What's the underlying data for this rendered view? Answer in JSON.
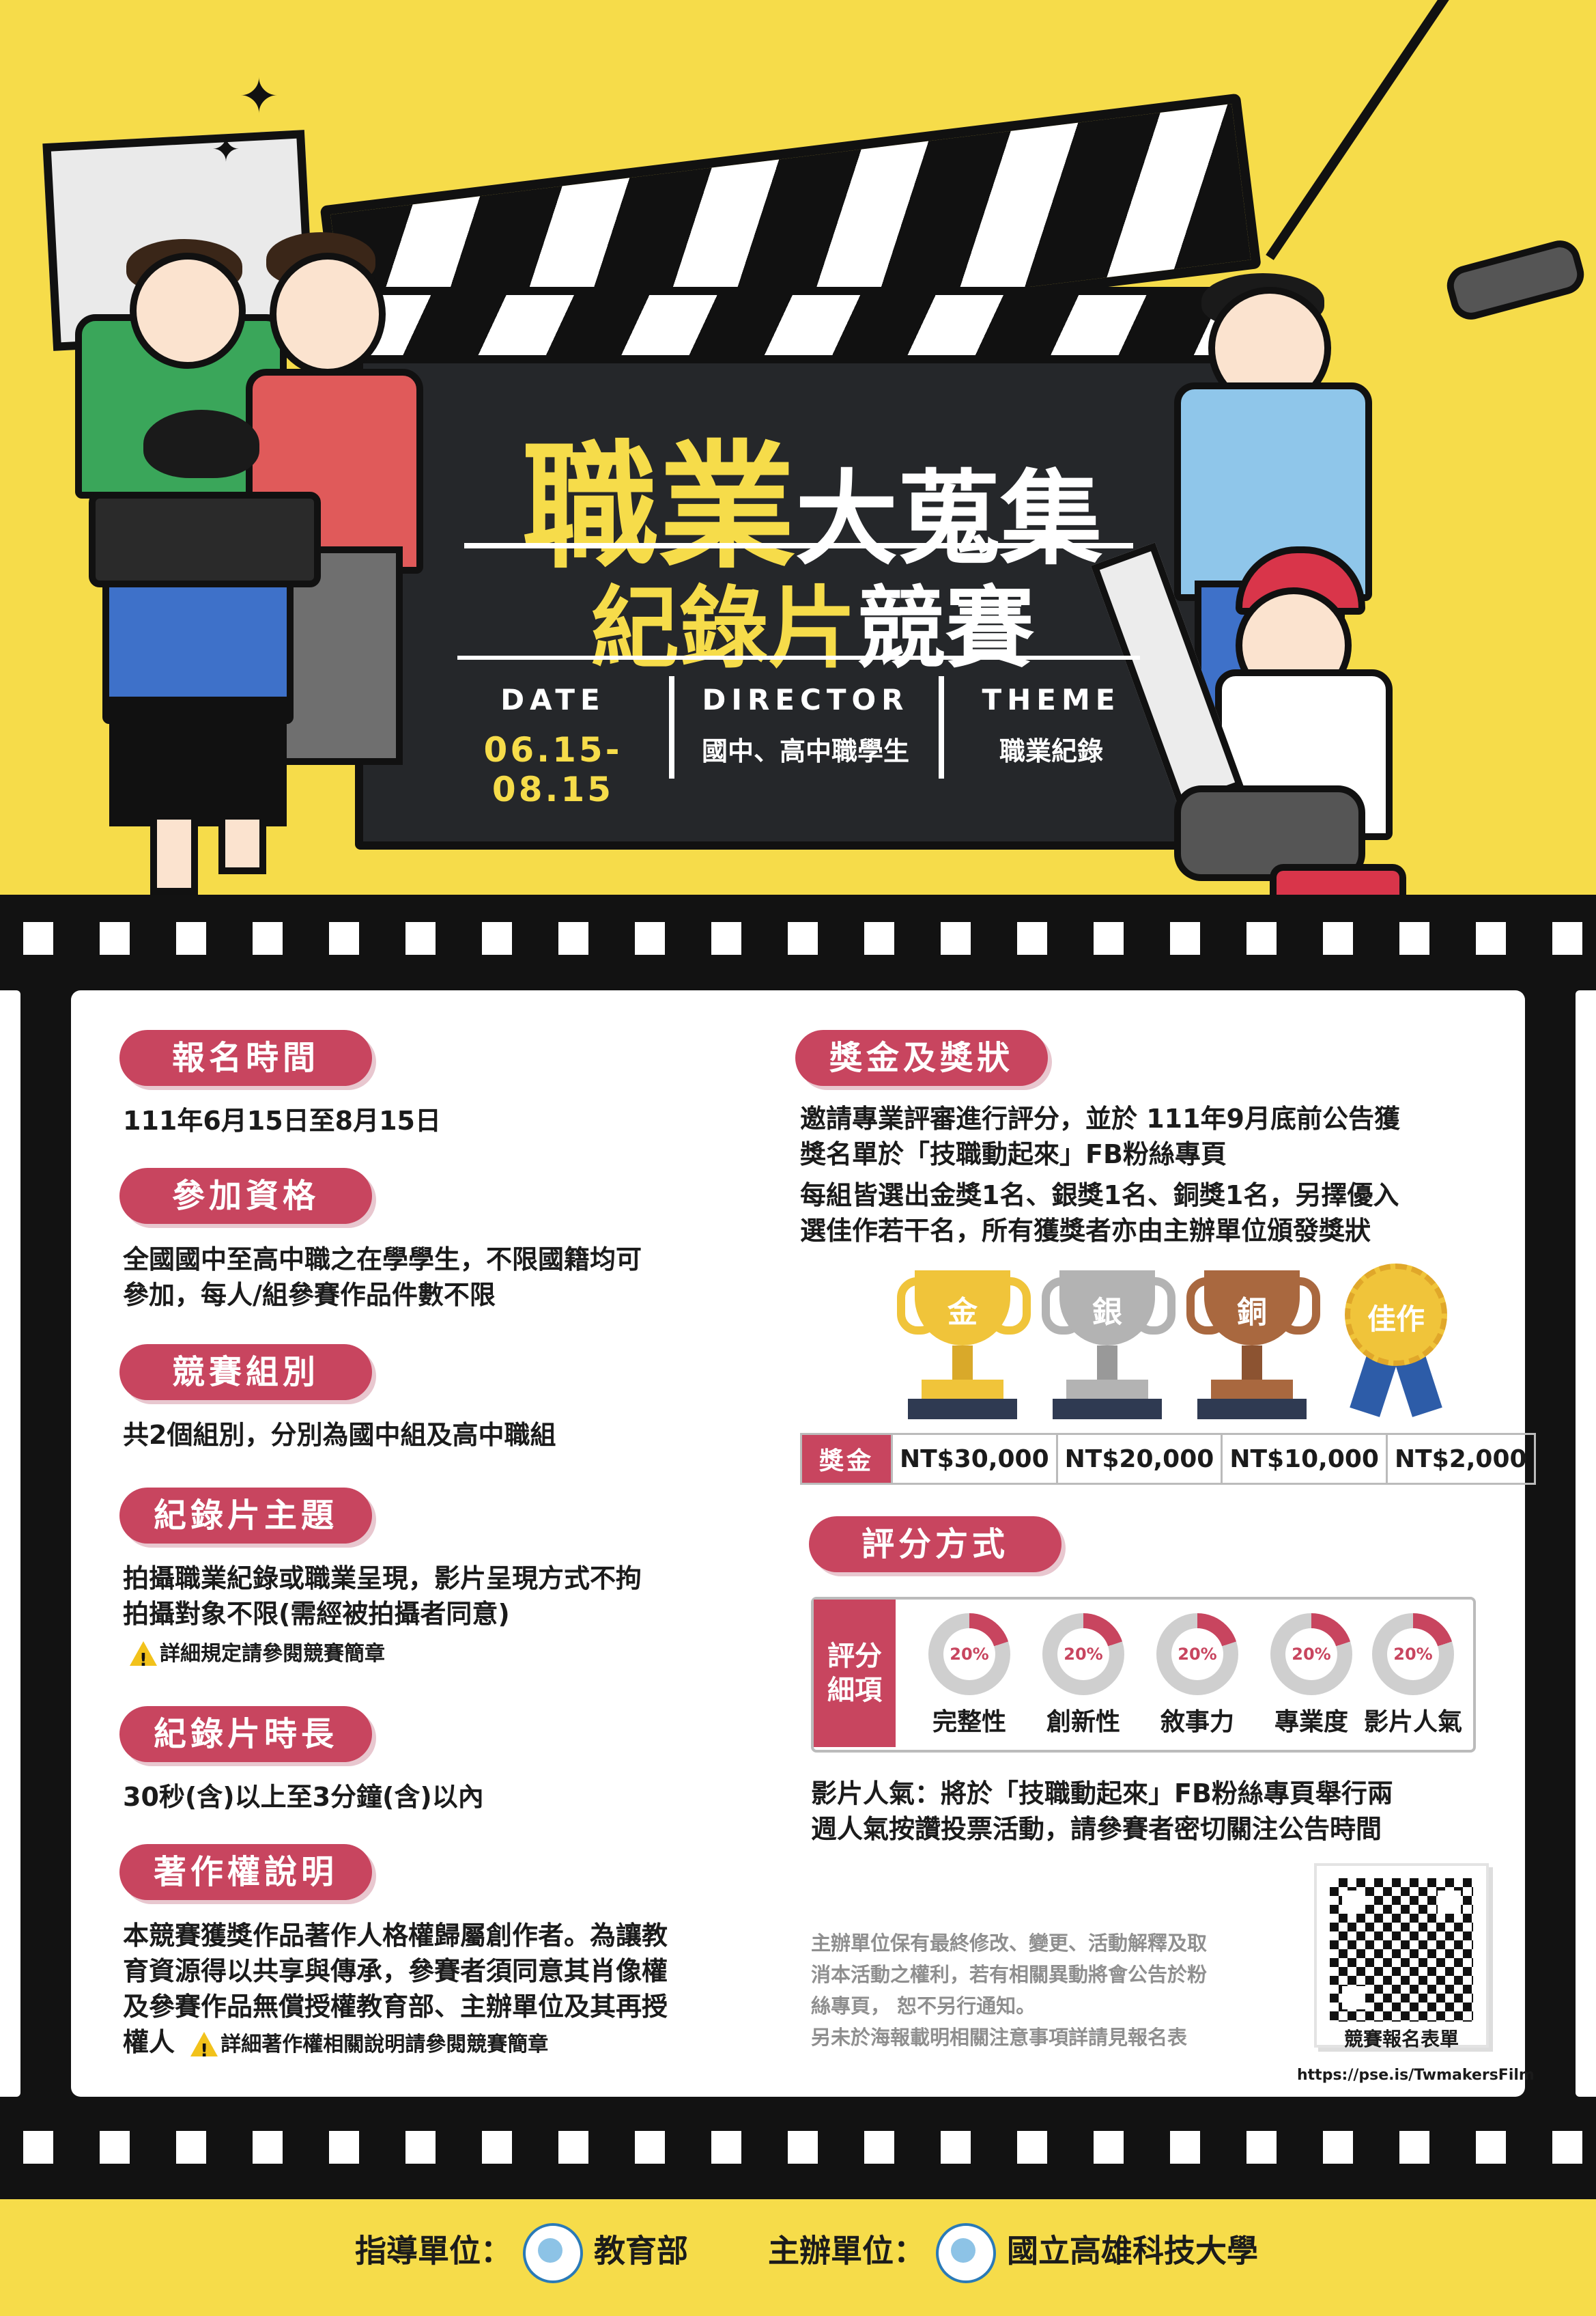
{
  "hero": {
    "title_part1": "職業",
    "title_part2": "大蒐集",
    "subtitle_part1": "紀錄片",
    "subtitle_part2": "競賽",
    "date_label": "DATE",
    "date_value": "06.15-08.15",
    "director_label": "DIRECTOR",
    "director_value": "國中、高中職學生",
    "theme_label": "THEME",
    "theme_value": "職業紀錄"
  },
  "left": {
    "registration": {
      "heading": "報名時間",
      "text": "111年6月15日至8月15日"
    },
    "eligibility": {
      "heading": "參加資格",
      "line1": "全國國中至高中職之在學學生，不限國籍均可",
      "line2": "參加，每人/組參賽作品件數不限"
    },
    "groups": {
      "heading": "競賽組別",
      "text": "共2個組別，分別為國中組及高中職組"
    },
    "theme": {
      "heading": "紀錄片主題",
      "line1": "拍攝職業紀錄或職業呈現，影片呈現方式不拘",
      "line2": "拍攝對象不限(需經被拍攝者同意)",
      "note": "詳細規定請參閱競賽簡章"
    },
    "duration": {
      "heading": "紀錄片時長",
      "text": "30秒(含)以上至3分鐘(含)以內"
    },
    "copyright": {
      "heading": "著作權說明",
      "line1": "本競賽獲獎作品著作人格權歸屬創作者。為讓教",
      "line2": "育資源得以共享與傳承，參賽者須同意其肖像權",
      "line3": "及參賽作品無償授權教育部、主辦單位及其再授",
      "line4": "權人",
      "note": "詳細著作權相關說明請參閱競賽簡章"
    }
  },
  "right": {
    "awards": {
      "heading": "獎金及獎狀",
      "line1": "邀請專業評審進行評分，並於 111年9月底前公告獲",
      "line2": "獎名單於「技職動起來」FB粉絲專頁",
      "line3": "每組皆選出金獎1名、銀獎1名、銅獎1名，另擇優入",
      "line4": "選佳作若干名，所有獲獎者亦由主辦單位頒發獎狀",
      "trophies": [
        "金",
        "銀",
        "銅",
        "佳作"
      ],
      "table_header": "獎金",
      "amounts": [
        "NT$30,000",
        "NT$20,000",
        "NT$10,000",
        "NT$2,000"
      ]
    },
    "scoring": {
      "heading": "評分方式",
      "label_line1": "評分",
      "label_line2": "細項",
      "items": [
        {
          "pct": "20%",
          "name": "完整性"
        },
        {
          "pct": "20%",
          "name": "創新性"
        },
        {
          "pct": "20%",
          "name": "敘事力"
        },
        {
          "pct": "20%",
          "name": "專業度"
        },
        {
          "pct": "20%",
          "name": "影片人氣"
        }
      ],
      "popularity_line1": "影片人氣：將於「技職動起來」FB粉絲專頁舉行兩",
      "popularity_line2": "週人氣按讚投票活動，請參賽者密切關注公告時間"
    },
    "disclaimer": {
      "line1": "主辦單位保有最終修改、變更、活動解釋及取",
      "line2": "消本活動之權利，若有相關異動將會公告於粉",
      "line3": "絲專頁， 恕不另行通知。",
      "line4": "另未於海報載明相關注意事項詳請見報名表"
    },
    "qr_caption": "競賽報名表單",
    "url": "https://pse.is/TwmakersFilm"
  },
  "footer": {
    "advisor_label": "指導單位：",
    "advisor_name": "教育部",
    "organizer_label": "主辦單位：",
    "organizer_name": "國立高雄科技大學"
  },
  "colors": {
    "background_yellow": "#f6dc4a",
    "accent_red": "#c8455f",
    "film_black": "#121212"
  }
}
